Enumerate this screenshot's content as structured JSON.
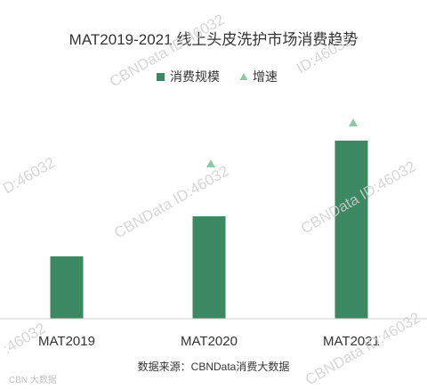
{
  "chart_data": {
    "type": "bar",
    "title": "MAT2019-2021 线上头皮洗护市场消费趋势",
    "categories": [
      "MAT2019",
      "MAT2020",
      "MAT2021"
    ],
    "series": [
      {
        "name": "消费规模",
        "kind": "bar",
        "values": [
          70,
          115,
          200
        ]
      },
      {
        "name": "增速",
        "kind": "marker",
        "values": [
          null,
          174,
          220
        ]
      }
    ],
    "ylim": [
      0,
      240
    ],
    "grid": false,
    "legend": "top-center",
    "xlabel": "",
    "ylabel": "",
    "source": "数据来源：CBNData消费大数据"
  },
  "colors": {
    "bar": "#3c8862",
    "marker": "#8ec9a6",
    "axis": "#cfcfcf",
    "title": "#333333"
  },
  "watermark": {
    "text": "CBNData ID:46032",
    "top_right": "ID:46032",
    "left_edge": "D:46032",
    "bottom_left": ":46032"
  },
  "logo": {
    "text": "CBN 大数据",
    "name": "cbndata-logo-icon"
  }
}
